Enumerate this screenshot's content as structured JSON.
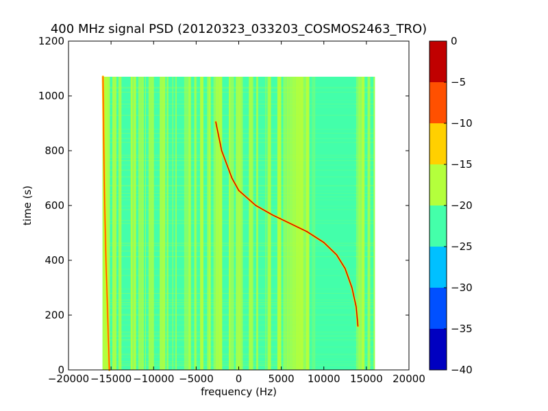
{
  "chart_data": {
    "type": "heatmap",
    "title": "400 MHz signal PSD (20120323_033203_COSMOS2463_TRO)",
    "xlabel": "frequency (Hz)",
    "ylabel": "time (s)",
    "xlim": [
      -20000,
      20000
    ],
    "ylim": [
      0,
      1200
    ],
    "xticks": [
      -20000,
      -15000,
      -10000,
      -5000,
      0,
      5000,
      10000,
      15000,
      20000
    ],
    "xtick_labels": [
      "−20000",
      "−15000",
      "−10000",
      "−5000",
      "0",
      "5000",
      "10000",
      "15000",
      "20000"
    ],
    "yticks": [
      0,
      200,
      400,
      600,
      800,
      1000,
      1200
    ],
    "ytick_labels": [
      "0",
      "200",
      "400",
      "600",
      "800",
      "1000",
      "1200"
    ],
    "data_extent": {
      "x": [
        -16000,
        16000
      ],
      "y": [
        0,
        1070
      ]
    },
    "background_level": "approximately -25 to -15 dB (noise floor)",
    "signal_traces": [
      {
        "name": "",
        "peak_level": "approximately 0 to -5",
        "points": [
          [
            -2700,
            905
          ],
          [
            -2000,
            800
          ],
          [
            -800,
            700
          ],
          [
            0,
            655
          ],
          [
            2000,
            600
          ],
          [
            4000,
            565
          ],
          [
            6000,
            535
          ],
          [
            8000,
            505
          ],
          [
            10000,
            465
          ],
          [
            11500,
            420
          ],
          [
            12500,
            370
          ],
          [
            13300,
            300
          ],
          [
            13800,
            230
          ],
          [
            14000,
            160
          ]
        ]
      },
      {
        "name": "",
        "peak_level": "approximately -5 to -10",
        "points": [
          [
            -15950,
            1070
          ],
          [
            -15850,
            800
          ],
          [
            -15750,
            600
          ],
          [
            -15600,
            400
          ],
          [
            -15400,
            200
          ],
          [
            -15200,
            0
          ]
        ]
      }
    ],
    "colorbar": {
      "colormap": "jet",
      "vmin": -40,
      "vmax": 0,
      "ticks": [
        0,
        -5,
        -10,
        -15,
        -20,
        -25,
        -30,
        -35,
        -40
      ],
      "tick_labels": [
        "0",
        "−5",
        "−10",
        "−15",
        "−20",
        "−25",
        "−30",
        "−35",
        "−40"
      ],
      "bands": [
        {
          "range": [
            -5,
            0
          ],
          "color": "#c00000"
        },
        {
          "range": [
            -10,
            -5
          ],
          "color": "#ff5000"
        },
        {
          "range": [
            -15,
            -10
          ],
          "color": "#ffd000"
        },
        {
          "range": [
            -20,
            -15
          ],
          "color": "#b4ff3c"
        },
        {
          "range": [
            -25,
            -20
          ],
          "color": "#44ffaa"
        },
        {
          "range": [
            -30,
            -25
          ],
          "color": "#00c0ff"
        },
        {
          "range": [
            -35,
            -30
          ],
          "color": "#0050ff"
        },
        {
          "range": [
            -40,
            -35
          ],
          "color": "#0000c0"
        }
      ]
    },
    "grid": false,
    "legend": "none"
  }
}
